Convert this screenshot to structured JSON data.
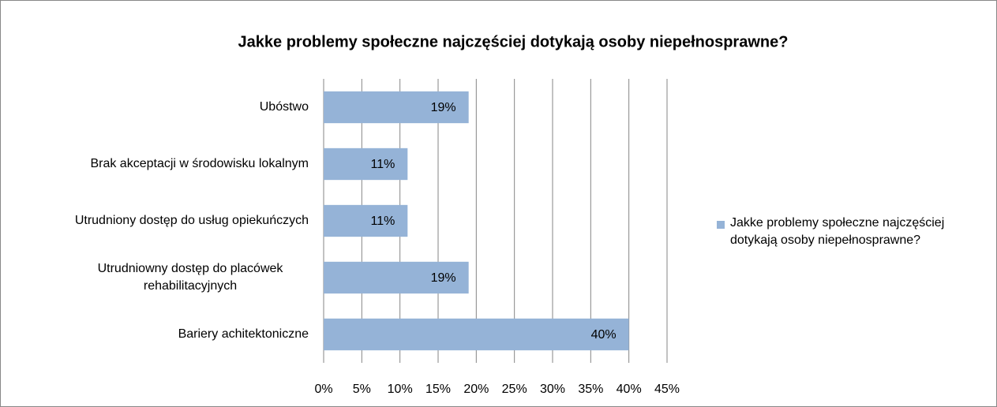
{
  "chart_data": {
    "type": "bar",
    "orientation": "horizontal",
    "title": "Jakke problemy społeczne najczęściej dotykają osoby niepełnosprawne?",
    "categories": [
      "Ubóstwo",
      "Brak akceptacji w środowisku lokalnym",
      "Utrudniony dostęp do usług opiekuńczych",
      "Utrudniowny dostęp do placówek rehabilitacyjnych",
      "Bariery achitektoniczne"
    ],
    "series": [
      {
        "name": "Jakke problemy społeczne najczęściej dotykają osoby niepełnosprawne?",
        "color": "#95b3d7",
        "values": [
          19,
          11,
          11,
          19,
          40
        ],
        "value_labels": [
          "19%",
          "11%",
          "11%",
          "19%",
          "40%"
        ]
      }
    ],
    "xlim": [
      0,
      45
    ],
    "xticks": [
      {
        "value": 0,
        "label": "0%"
      },
      {
        "value": 5,
        "label": "5%"
      },
      {
        "value": 10,
        "label": "10%"
      },
      {
        "value": 15,
        "label": "15%"
      },
      {
        "value": 20,
        "label": "20%"
      },
      {
        "value": 25,
        "label": "25%"
      },
      {
        "value": 30,
        "label": "30%"
      },
      {
        "value": 35,
        "label": "35%"
      },
      {
        "value": 40,
        "label": "40%"
      },
      {
        "value": 45,
        "label": "45%"
      }
    ],
    "grid": true,
    "legend": "right"
  }
}
